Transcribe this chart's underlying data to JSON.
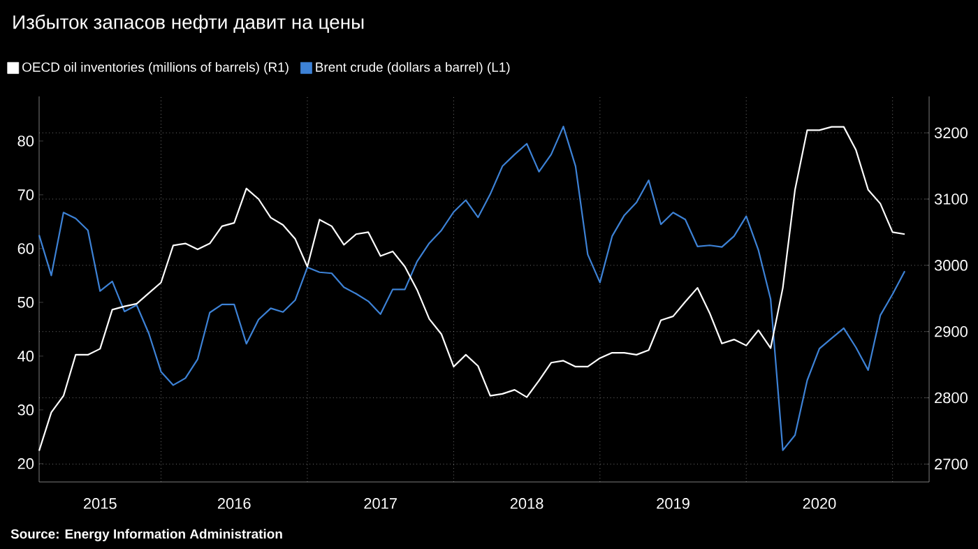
{
  "chart_data": {
    "type": "line",
    "title": "Избыток запасов нефти давит на цены",
    "x": [
      "2015-03",
      "2015-04",
      "2015-05",
      "2015-06",
      "2015-07",
      "2015-08",
      "2015-09",
      "2015-10",
      "2015-11",
      "2015-12",
      "2016-01",
      "2016-02",
      "2016-03",
      "2016-04",
      "2016-05",
      "2016-06",
      "2016-07",
      "2016-08",
      "2016-09",
      "2016-10",
      "2016-11",
      "2016-12",
      "2017-01",
      "2017-02",
      "2017-03",
      "2017-04",
      "2017-05",
      "2017-06",
      "2017-07",
      "2017-08",
      "2017-09",
      "2017-10",
      "2017-11",
      "2017-12",
      "2018-01",
      "2018-02",
      "2018-03",
      "2018-04",
      "2018-05",
      "2018-06",
      "2018-07",
      "2018-08",
      "2018-09",
      "2018-10",
      "2018-11",
      "2018-12",
      "2019-01",
      "2019-02",
      "2019-03",
      "2019-04",
      "2019-05",
      "2019-06",
      "2019-07",
      "2019-08",
      "2019-09",
      "2019-10",
      "2019-11",
      "2019-12",
      "2020-01",
      "2020-02",
      "2020-03",
      "2020-04",
      "2020-05",
      "2020-06",
      "2020-07",
      "2020-08",
      "2020-09",
      "2020-10",
      "2020-11",
      "2020-12",
      "2021-01",
      "2021-02"
    ],
    "series": [
      {
        "name": "OECD oil inventories (millions of barrels) (R1)",
        "color": "#ffffff",
        "axis": "y2",
        "values": [
          2720,
          2778,
          2803,
          2865,
          2865,
          2874,
          2933,
          2938,
          2942,
          2958,
          2974,
          3030,
          3033,
          3024,
          3033,
          3059,
          3064,
          3116,
          3100,
          3072,
          3061,
          3040,
          2998,
          3069,
          3059,
          3031,
          3047,
          3050,
          3014,
          3021,
          2998,
          2963,
          2919,
          2896,
          2847,
          2865,
          2848,
          2803,
          2806,
          2812,
          2801,
          2826,
          2853,
          2856,
          2847,
          2847,
          2860,
          2868,
          2868,
          2865,
          2872,
          2917,
          2923,
          2945,
          2966,
          2928,
          2882,
          2888,
          2879,
          2902,
          2875,
          2966,
          3114,
          3204,
          3204,
          3209,
          3209,
          3174,
          3114,
          3093,
          3050,
          3047
        ]
      },
      {
        "name": "Brent crude (dollars a barrel) (L1)",
        "color": "#3d82d6",
        "axis": "y",
        "values": [
          62.5,
          55,
          66.7,
          65.6,
          63.4,
          52.1,
          53.9,
          48.3,
          49.5,
          44.2,
          37.1,
          34.6,
          35.9,
          39.4,
          48.1,
          49.6,
          49.6,
          42.3,
          46.8,
          48.9,
          48.2,
          50.4,
          56.5,
          55.6,
          55.4,
          52.8,
          51.6,
          50.2,
          47.8,
          52.4,
          52.4,
          57.6,
          61,
          63.4,
          66.8,
          69,
          65.8,
          70.1,
          75.3,
          77.5,
          79.5,
          74.3,
          77.5,
          82.7,
          75.3,
          58.9,
          53.7,
          62.3,
          66.2,
          68.6,
          72.7,
          64.5,
          66.7,
          65.4,
          60.4,
          60.6,
          60.3,
          62.3,
          66,
          59.7,
          50.6,
          22.5,
          25.3,
          35.5,
          41.4,
          43.3,
          45.2,
          41.6,
          37.4,
          47.6,
          51.5,
          55.8
        ]
      }
    ],
    "xlim": [
      "2015-03",
      "2021-04"
    ],
    "xticks": [
      {
        "value": "2015-08",
        "label": "2015"
      },
      {
        "value": "2016-01",
        "label": null
      },
      {
        "value": "2016-07",
        "label": "2016"
      },
      {
        "value": "2017-01",
        "label": null
      },
      {
        "value": "2017-07",
        "label": "2017"
      },
      {
        "value": "2018-01",
        "label": null
      },
      {
        "value": "2018-07",
        "label": "2018"
      },
      {
        "value": "2019-01",
        "label": null
      },
      {
        "value": "2019-07",
        "label": "2019"
      },
      {
        "value": "2020-01",
        "label": null
      },
      {
        "value": "2020-07",
        "label": "2020"
      },
      {
        "value": "2021-01",
        "label": null
      }
    ],
    "ylim": [
      16.6,
      88.3
    ],
    "yticks": [
      20,
      30,
      40,
      50,
      60,
      70,
      80
    ],
    "y2lim": [
      2673,
      3255
    ],
    "y2ticks": [
      2700,
      2800,
      2900,
      3000,
      3100,
      3200
    ],
    "grid": true,
    "legend": "top left",
    "marker": "none",
    "annotations": [
      "Source: Energy Information Administration"
    ]
  }
}
